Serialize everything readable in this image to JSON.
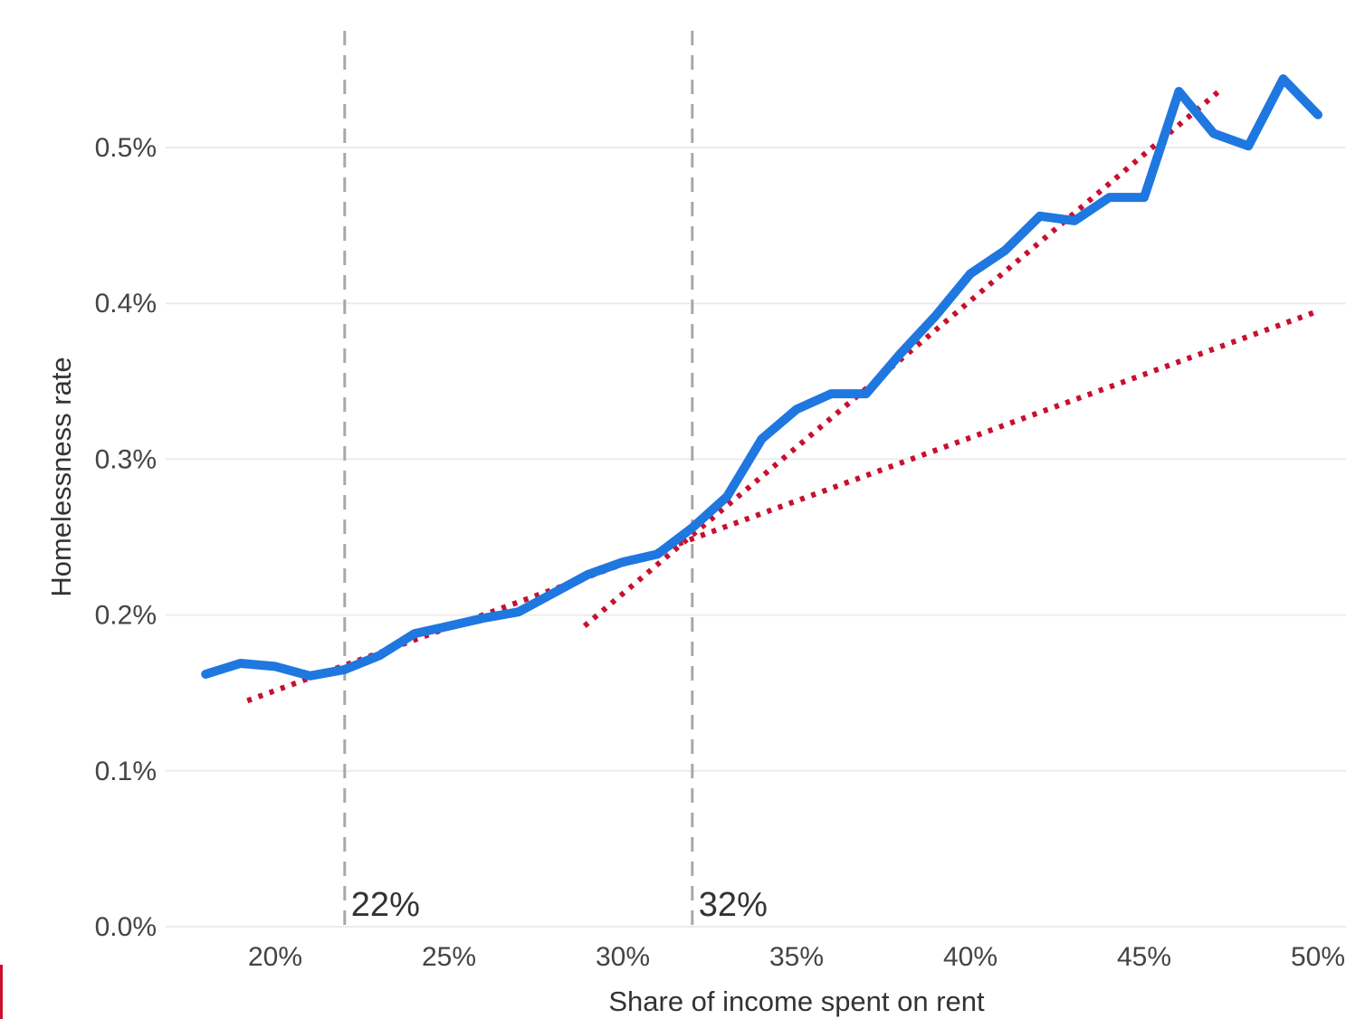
{
  "chart_data": {
    "type": "line",
    "title": "",
    "xlabel": "Share of income spent on rent",
    "ylabel": "Homelessness rate",
    "xlim": [
      17,
      50.5
    ],
    "ylim": [
      0,
      0.6
    ],
    "x_ticks": [
      20,
      25,
      30,
      35,
      40,
      45,
      50
    ],
    "x_tick_labels": [
      "20%",
      "25%",
      "30%",
      "35%",
      "40%",
      "45%",
      "50%"
    ],
    "y_ticks": [
      0.0,
      0.1,
      0.2,
      0.3,
      0.4,
      0.5
    ],
    "y_tick_labels": [
      "0.0%",
      "0.1%",
      "0.2%",
      "0.3%",
      "0.4%",
      "0.5%"
    ],
    "grid": "horizontal",
    "legend": "none",
    "colors": {
      "series": "#1f77e0",
      "trend": "#c8102e",
      "threshold": "#a8a8a8",
      "grid": "#ececec",
      "edge_mark": "#c8102e"
    },
    "series": [
      {
        "x": [
          18,
          19,
          20,
          21,
          22,
          23,
          24,
          25,
          26,
          27,
          28,
          29,
          30,
          31,
          32,
          33,
          34,
          35,
          36,
          37,
          38,
          39,
          40,
          41,
          42,
          43,
          44,
          45,
          46,
          47,
          48,
          49,
          50
        ],
        "values": [
          0.162,
          0.169,
          0.167,
          0.161,
          0.165,
          0.174,
          0.188,
          0.193,
          0.198,
          0.202,
          0.214,
          0.226,
          0.234,
          0.239,
          0.256,
          0.276,
          0.313,
          0.332,
          0.342,
          0.342,
          0.368,
          0.392,
          0.419,
          0.434,
          0.456,
          0.453,
          0.468,
          0.468,
          0.536,
          0.509,
          0.501,
          0.544,
          0.521
        ]
      }
    ],
    "trend_lines": [
      {
        "x": [
          19.2,
          50
        ],
        "values": [
          0.145,
          0.395
        ]
      },
      {
        "x": [
          28.9,
          47.2
        ],
        "values": [
          0.193,
          0.537
        ]
      }
    ],
    "annotations": [
      {
        "x": 22,
        "label": "22%"
      },
      {
        "x": 32,
        "label": "32%"
      }
    ]
  }
}
